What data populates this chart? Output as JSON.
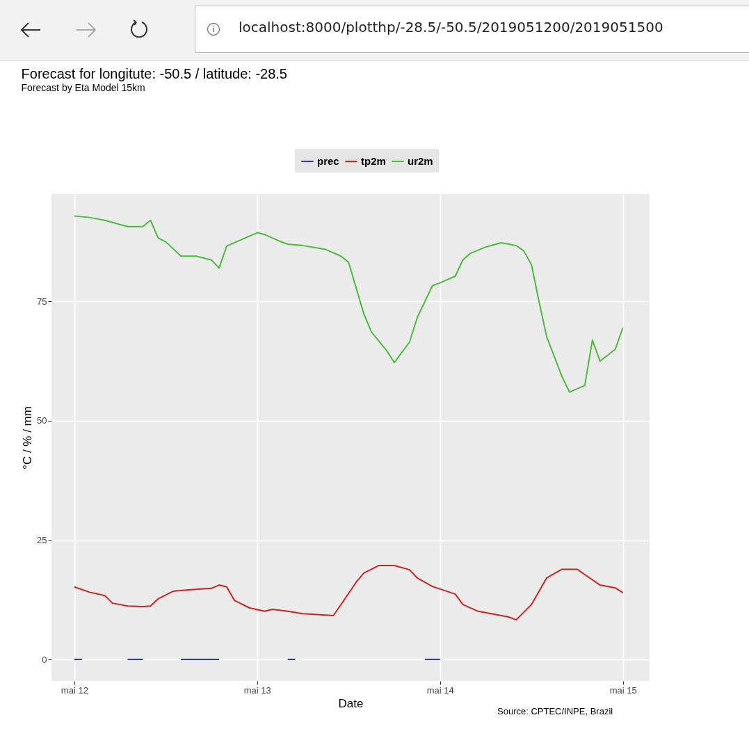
{
  "chart_data": {
    "type": "line",
    "title": "Forecast for longitute: -50.5 / latitude: -28.5",
    "subtitle": "Forecast by Eta Model 15km",
    "xlabel": "Date",
    "ylabel": "°C / % / mm",
    "annotations": [
      "Source: CPTEC/INPE, Brazil",
      "localhost:8000/plotthp/-28.5/-50.5/2019051200/2019051500"
    ],
    "series": [
      {
        "name": "prec",
        "color": "#2b3d9c",
        "x": [
          "2019-05-12T00:00",
          "2019-05-12T01:00",
          "2019-05-12T02:00",
          "2019-05-12T07:00",
          "2019-05-12T08:00",
          "2019-05-12T09:00",
          "2019-05-12T10:00",
          "2019-05-12T14:00",
          "2019-05-12T15:00",
          "2019-05-12T16:00",
          "2019-05-12T17:00",
          "2019-05-12T18:00",
          "2019-05-12T19:00",
          "2019-05-12T20:00",
          "2019-05-13T04:00",
          "2019-05-13T05:00",
          "2019-05-13T06:00",
          "2019-05-13T22:00",
          "2019-05-13T23:00",
          "2019-05-14T00:00"
        ],
        "values": [
          0,
          0,
          null,
          0,
          0,
          0,
          null,
          0,
          0,
          0,
          0,
          0,
          0,
          null,
          0,
          0,
          null,
          0,
          0,
          0
        ]
      },
      {
        "name": "tp2m",
        "color": "#cc2222",
        "x": [
          "2019-05-12T00:00",
          "2019-05-12T02:00",
          "2019-05-12T04:00",
          "2019-05-12T05:00",
          "2019-05-12T07:00",
          "2019-05-12T09:00",
          "2019-05-12T10:00",
          "2019-05-12T11:00",
          "2019-05-12T13:00",
          "2019-05-12T15:00",
          "2019-05-12T18:00",
          "2019-05-12T19:00",
          "2019-05-12T20:00",
          "2019-05-12T21:00",
          "2019-05-12T23:00",
          "2019-05-13T01:00",
          "2019-05-13T02:00",
          "2019-05-13T04:00",
          "2019-05-13T06:00",
          "2019-05-13T10:00",
          "2019-05-13T11:00",
          "2019-05-13T13:00",
          "2019-05-13T14:00",
          "2019-05-13T16:00",
          "2019-05-13T18:00",
          "2019-05-13T20:00",
          "2019-05-13T21:00",
          "2019-05-13T23:00",
          "2019-05-14T02:00",
          "2019-05-14T03:00",
          "2019-05-14T05:00",
          "2019-05-14T09:00",
          "2019-05-14T10:00",
          "2019-05-14T12:00",
          "2019-05-14T14:00",
          "2019-05-14T16:00",
          "2019-05-14T18:00",
          "2019-05-14T19:00",
          "2019-05-14T21:00",
          "2019-05-14T23:00",
          "2019-05-15T00:00"
        ],
        "values": [
          15.2,
          14.1,
          13.4,
          11.8,
          11.2,
          11.1,
          11.2,
          12.7,
          14.3,
          14.6,
          14.9,
          15.6,
          15.2,
          12.4,
          10.8,
          10.1,
          10.5,
          10.1,
          9.6,
          9.2,
          11.5,
          16.2,
          18.1,
          19.7,
          19.7,
          18.8,
          17.1,
          15.3,
          13.7,
          11.5,
          10.1,
          8.9,
          8.3,
          11.5,
          17.1,
          18.9,
          18.9,
          17.8,
          15.6,
          15.0,
          14.0
        ]
      },
      {
        "name": "ur2m",
        "color": "#4cbb3c",
        "x": [
          "2019-05-12T00:00",
          "2019-05-12T02:00",
          "2019-05-12T04:00",
          "2019-05-12T07:00",
          "2019-05-12T09:00",
          "2019-05-12T10:00",
          "2019-05-12T11:00",
          "2019-05-12T12:00",
          "2019-05-12T14:00",
          "2019-05-12T16:00",
          "2019-05-12T18:00",
          "2019-05-12T19:00",
          "2019-05-12T20:00",
          "2019-05-12T22:00",
          "2019-05-13T00:00",
          "2019-05-13T01:00",
          "2019-05-13T03:00",
          "2019-05-13T04:00",
          "2019-05-13T06:00",
          "2019-05-13T09:00",
          "2019-05-13T11:00",
          "2019-05-13T12:00",
          "2019-05-13T14:00",
          "2019-05-13T15:00",
          "2019-05-13T17:00",
          "2019-05-13T18:00",
          "2019-05-13T20:00",
          "2019-05-13T21:00",
          "2019-05-13T23:00",
          "2019-05-14T00:00",
          "2019-05-14T02:00",
          "2019-05-14T03:00",
          "2019-05-14T04:00",
          "2019-05-14T06:00",
          "2019-05-14T08:00",
          "2019-05-14T09:00",
          "2019-05-14T10:00",
          "2019-05-14T11:00",
          "2019-05-14T12:00",
          "2019-05-14T13:00",
          "2019-05-14T14:00",
          "2019-05-14T16:00",
          "2019-05-14T17:00",
          "2019-05-14T19:00",
          "2019-05-14T20:00",
          "2019-05-14T21:00",
          "2019-05-14T23:00",
          "2019-05-15T00:00"
        ],
        "values": [
          92.9,
          92.6,
          92.0,
          90.7,
          90.7,
          92.0,
          88.3,
          87.5,
          84.5,
          84.5,
          83.7,
          82.0,
          86.6,
          88.0,
          89.4,
          89.0,
          87.6,
          87.0,
          86.7,
          85.9,
          84.5,
          83.2,
          72.4,
          68.6,
          64.7,
          62.2,
          66.5,
          71.6,
          78.3,
          78.9,
          80.3,
          83.7,
          85.1,
          86.4,
          87.3,
          87.0,
          86.7,
          85.6,
          82.7,
          74.9,
          67.6,
          59.3,
          56.0,
          57.4,
          66.9,
          62.5,
          65.0,
          69.5
        ]
      }
    ],
    "xlim": [
      "2019-05-11T21:00",
      "2019-05-15T03:30"
    ],
    "xticks": [
      {
        "value": "2019-05-12",
        "label": "mai 12"
      },
      {
        "value": "2019-05-13",
        "label": "mai 13"
      },
      {
        "value": "2019-05-14",
        "label": "mai 14"
      },
      {
        "value": "2019-05-15",
        "label": "mai 15"
      }
    ],
    "ylim": [
      -4.5,
      97.5
    ],
    "yticks": [
      0,
      25,
      50,
      75
    ],
    "grid": true,
    "legend": "top"
  }
}
